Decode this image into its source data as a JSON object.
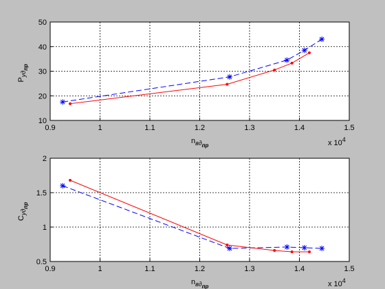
{
  "chart_data": [
    {
      "type": "line",
      "ylabel": {
        "text": "P",
        "sub": "уд",
        "subsub": "пр"
      },
      "xlabel": {
        "text": "n",
        "sub": "вд",
        "subsub": "пр"
      },
      "x_multiplier": {
        "text": "x 10",
        "exponent": "4"
      },
      "xlim": [
        0.9,
        1.5
      ],
      "xticks": [
        0.9,
        1,
        1.1,
        1.2,
        1.3,
        1.4,
        1.5
      ],
      "ylim": [
        10,
        50
      ],
      "yticks": [
        10,
        20,
        30,
        40,
        50
      ],
      "grid": true,
      "series": [
        {
          "color": "#0000ff",
          "linestyle": "dashed",
          "marker": "star",
          "x": [
            0.925,
            1.26,
            1.375,
            1.41,
            1.445
          ],
          "values": [
            17.5,
            27.7,
            34.5,
            38.5,
            43
          ]
        },
        {
          "color": "#ff0000",
          "linestyle": "solid",
          "marker": "dot",
          "x": [
            0.94,
            1.255,
            1.35,
            1.385,
            1.42
          ],
          "values": [
            16.8,
            24.7,
            30.5,
            33.3,
            37.5
          ]
        }
      ]
    },
    {
      "type": "line",
      "ylabel": {
        "text": "C",
        "sub": "уд",
        "subsub": "пр"
      },
      "xlabel": {
        "text": "n",
        "sub": "вд",
        "subsub": "пр"
      },
      "x_multiplier": {
        "text": "x 10",
        "exponent": "4"
      },
      "xlim": [
        0.9,
        1.5
      ],
      "xticks": [
        0.9,
        1,
        1.1,
        1.2,
        1.3,
        1.4,
        1.5
      ],
      "ylim": [
        0.5,
        2
      ],
      "yticks": [
        0.5,
        1,
        1.5,
        2
      ],
      "grid": true,
      "series": [
        {
          "color": "#0000ff",
          "linestyle": "dashed",
          "marker": "star",
          "x": [
            0.925,
            1.26,
            1.375,
            1.41,
            1.445
          ],
          "values": [
            1.6,
            0.69,
            0.71,
            0.7,
            0.69
          ]
        },
        {
          "color": "#ff0000",
          "linestyle": "solid",
          "marker": "dot",
          "x": [
            0.94,
            1.255,
            1.35,
            1.385,
            1.42
          ],
          "values": [
            1.68,
            0.74,
            0.66,
            0.64,
            0.64
          ]
        }
      ]
    }
  ]
}
